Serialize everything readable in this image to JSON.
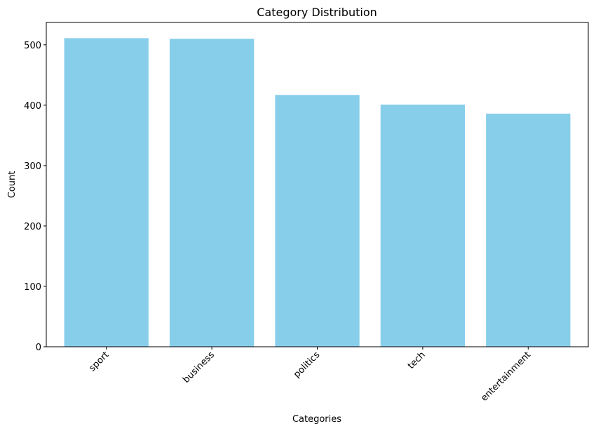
{
  "chart_data": {
    "type": "bar",
    "title": "Category Distribution",
    "xlabel": "Categories",
    "ylabel": "Count",
    "categories": [
      "sport",
      "business",
      "politics",
      "tech",
      "entertainment"
    ],
    "values": [
      511,
      510,
      417,
      401,
      386
    ],
    "ylim": [
      0,
      537
    ],
    "yticks": [
      0,
      100,
      200,
      300,
      400,
      500
    ],
    "bar_color": "#87ceeb",
    "grid": false,
    "xtick_rotation_deg": 45
  }
}
